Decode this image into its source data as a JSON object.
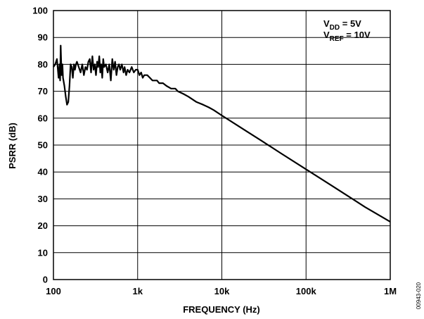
{
  "chart_data": {
    "type": "line",
    "xlabel": "FREQUENCY (Hz)",
    "ylabel": "PSRR (dB)",
    "x_scale": "log",
    "xlim": [
      100,
      1000000
    ],
    "ylim": [
      0,
      100
    ],
    "grid": true,
    "x_ticks": [
      {
        "value": 100,
        "label": "100"
      },
      {
        "value": 1000,
        "label": "1k"
      },
      {
        "value": 10000,
        "label": "10k"
      },
      {
        "value": 100000,
        "label": "100k"
      },
      {
        "value": 1000000,
        "label": "1M"
      }
    ],
    "y_ticks": [
      0,
      10,
      20,
      30,
      40,
      50,
      60,
      70,
      80,
      90,
      100
    ],
    "legend": {
      "placement": "top-right",
      "lines": [
        {
          "main": "V",
          "sub": "DD",
          "rest": " = 5V"
        },
        {
          "main": "V",
          "sub": "REF",
          "rest": " = 10V"
        }
      ]
    },
    "series": [
      {
        "x": [
          100,
          105,
          110,
          115,
          118,
          120,
          122,
          125,
          128,
          130,
          135,
          140,
          145,
          150,
          155,
          160,
          165,
          170,
          175,
          180,
          185,
          190,
          200,
          210,
          220,
          230,
          240,
          250,
          260,
          270,
          280,
          290,
          300,
          310,
          320,
          330,
          340,
          350,
          360,
          370,
          380,
          390,
          400,
          420,
          440,
          460,
          480,
          500,
          520,
          540,
          560,
          580,
          600,
          620,
          650,
          680,
          700,
          730,
          760,
          800,
          850,
          900,
          950,
          1000,
          1050,
          1100,
          1150,
          1200,
          1300,
          1400,
          1500,
          1600,
          1700,
          1800,
          1900,
          2000,
          2200,
          2500,
          2800,
          3000,
          3500,
          4000,
          5000,
          6000,
          7000,
          8000,
          10000,
          15000,
          20000,
          30000,
          50000,
          100000,
          200000,
          500000,
          1000000
        ],
        "y": [
          79,
          80,
          82,
          75,
          80,
          74,
          87,
          76,
          80,
          75,
          72,
          68,
          65,
          66,
          72,
          80,
          79,
          75,
          80,
          78,
          80,
          81,
          79,
          77,
          80,
          76,
          79,
          78,
          81,
          82,
          77,
          83,
          78,
          80,
          76,
          81,
          79,
          83,
          77,
          80,
          75,
          82,
          79,
          80,
          77,
          80,
          74,
          82,
          78,
          81,
          76,
          79,
          80,
          78,
          80,
          77,
          79,
          76,
          78,
          77,
          79,
          77,
          78,
          78,
          76,
          77,
          75,
          76,
          76,
          75,
          74,
          74,
          74,
          73,
          73,
          73,
          72,
          71,
          71,
          70,
          69,
          68,
          66,
          65,
          64,
          63,
          61,
          57.5,
          55,
          51.5,
          47,
          41,
          35,
          27,
          21.5
        ]
      }
    ]
  },
  "figure_id": "00943-020"
}
